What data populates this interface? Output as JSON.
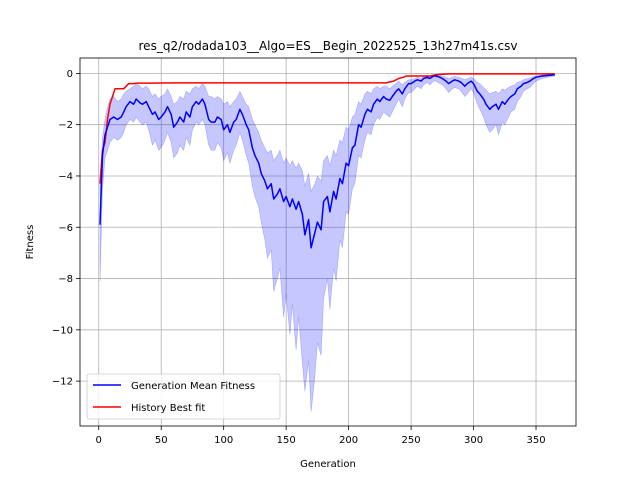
{
  "chart_data": {
    "type": "line",
    "title": "res_q2/rodada103__Algo=ES__Begin_2022525_13h27m41s.csv",
    "xlabel": "Generation",
    "ylabel": "Fitness",
    "xlim": [
      -15,
      382
    ],
    "ylim": [
      -13.75,
      0.6
    ],
    "grid": true,
    "legend_position": "lower-left",
    "xticks": [
      0,
      50,
      100,
      150,
      200,
      250,
      300,
      350
    ],
    "yticks": [
      0,
      -2,
      -4,
      -6,
      -8,
      -10,
      -12
    ],
    "series": [
      {
        "name": "Generation Mean Fitness",
        "color": "#0000ff",
        "x": [
          1,
          3,
          5,
          7,
          9,
          12,
          15,
          18,
          20,
          22,
          25,
          28,
          30,
          33,
          35,
          38,
          40,
          43,
          45,
          48,
          50,
          53,
          55,
          58,
          60,
          63,
          65,
          68,
          70,
          73,
          75,
          78,
          80,
          83,
          85,
          88,
          90,
          93,
          95,
          98,
          100,
          103,
          105,
          108,
          110,
          113,
          115,
          118,
          120,
          123,
          125,
          128,
          130,
          133,
          135,
          138,
          140,
          143,
          145,
          148,
          150,
          153,
          155,
          158,
          160,
          163,
          165,
          168,
          170,
          173,
          175,
          178,
          180,
          183,
          185,
          188,
          190,
          193,
          195,
          198,
          200,
          203,
          205,
          208,
          210,
          213,
          215,
          218,
          220,
          223,
          225,
          228,
          230,
          233,
          235,
          238,
          240,
          243,
          245,
          248,
          250,
          253,
          255,
          258,
          260,
          263,
          265,
          268,
          270,
          273,
          275,
          278,
          280,
          283,
          285,
          288,
          290,
          293,
          295,
          298,
          300,
          303,
          305,
          308,
          310,
          313,
          315,
          318,
          320,
          323,
          325,
          328,
          330,
          333,
          335,
          338,
          340,
          343,
          345,
          348,
          350,
          355,
          360,
          365
        ],
        "values": [
          -5.9,
          -3.2,
          -2.4,
          -2.1,
          -1.8,
          -1.7,
          -1.8,
          -1.7,
          -1.5,
          -1.3,
          -1.1,
          -1.2,
          -1.0,
          -1.15,
          -1.2,
          -1.1,
          -1.3,
          -1.6,
          -1.5,
          -1.8,
          -1.7,
          -1.5,
          -1.3,
          -1.6,
          -2.1,
          -1.9,
          -1.7,
          -1.9,
          -1.5,
          -1.7,
          -1.3,
          -1.1,
          -1.2,
          -1.0,
          -1.2,
          -1.8,
          -1.9,
          -1.9,
          -1.7,
          -1.8,
          -2.2,
          -2.0,
          -2.3,
          -1.9,
          -1.8,
          -1.4,
          -1.6,
          -2.0,
          -2.2,
          -2.9,
          -3.2,
          -3.5,
          -3.9,
          -4.2,
          -4.5,
          -4.3,
          -4.9,
          -4.7,
          -4.5,
          -5.0,
          -4.8,
          -5.2,
          -4.9,
          -5.3,
          -5.0,
          -5.5,
          -6.3,
          -5.7,
          -6.8,
          -6.2,
          -5.8,
          -6.1,
          -5.0,
          -4.8,
          -5.4,
          -4.6,
          -4.9,
          -4.1,
          -4.3,
          -3.5,
          -3.6,
          -2.9,
          -2.8,
          -2.0,
          -2.1,
          -1.6,
          -1.4,
          -1.5,
          -1.2,
          -1.0,
          -1.1,
          -0.9,
          -1.0,
          -1.05,
          -0.9,
          -0.7,
          -0.6,
          -0.8,
          -0.6,
          -0.4,
          -0.4,
          -0.3,
          -0.25,
          -0.3,
          -0.2,
          -0.15,
          -0.2,
          -0.1,
          -0.1,
          -0.15,
          -0.2,
          -0.3,
          -0.4,
          -0.3,
          -0.25,
          -0.3,
          -0.35,
          -0.5,
          -0.4,
          -0.3,
          -0.4,
          -0.7,
          -0.8,
          -1.0,
          -1.2,
          -1.4,
          -1.3,
          -1.2,
          -1.4,
          -1.1,
          -1.2,
          -1.0,
          -0.9,
          -0.8,
          -0.6,
          -0.5,
          -0.4,
          -0.35,
          -0.3,
          -0.2,
          -0.15,
          -0.1,
          -0.08,
          -0.05
        ]
      },
      {
        "name": "History Best fit",
        "color": "#ff0000",
        "x": [
          1,
          3,
          5,
          7,
          9,
          11,
          13,
          15,
          20,
          22,
          24,
          28,
          30,
          40,
          60,
          100,
          150,
          200,
          230,
          236,
          240,
          244,
          246,
          255,
          260,
          265,
          270,
          275,
          280,
          300,
          340,
          365
        ],
        "values": [
          -4.3,
          -3.0,
          -2.7,
          -1.8,
          -1.2,
          -0.9,
          -0.6,
          -0.6,
          -0.6,
          -0.5,
          -0.4,
          -0.4,
          -0.38,
          -0.38,
          -0.37,
          -0.37,
          -0.37,
          -0.37,
          -0.37,
          -0.3,
          -0.2,
          -0.15,
          -0.1,
          -0.1,
          -0.1,
          -0.1,
          -0.05,
          -0.03,
          -0.02,
          -0.02,
          -0.02,
          -0.02
        ]
      }
    ],
    "band": {
      "color": "#0000ff",
      "opacity": 0.22,
      "x": [
        1,
        3,
        5,
        7,
        9,
        12,
        15,
        18,
        20,
        22,
        25,
        28,
        30,
        33,
        35,
        38,
        40,
        43,
        45,
        48,
        50,
        53,
        55,
        58,
        60,
        63,
        65,
        68,
        70,
        73,
        75,
        78,
        80,
        83,
        85,
        88,
        90,
        93,
        95,
        98,
        100,
        103,
        105,
        108,
        110,
        113,
        115,
        118,
        120,
        123,
        125,
        128,
        130,
        133,
        135,
        138,
        140,
        143,
        145,
        148,
        150,
        153,
        155,
        158,
        160,
        163,
        165,
        168,
        170,
        173,
        175,
        178,
        180,
        183,
        185,
        188,
        190,
        193,
        195,
        198,
        200,
        203,
        205,
        208,
        210,
        213,
        215,
        218,
        220,
        223,
        225,
        228,
        230,
        233,
        235,
        238,
        240,
        243,
        245,
        248,
        250,
        253,
        255,
        258,
        260,
        263,
        265,
        268,
        270,
        273,
        275,
        278,
        280,
        283,
        285,
        288,
        290,
        293,
        295,
        298,
        300,
        303,
        305,
        308,
        310,
        313,
        315,
        318,
        320,
        323,
        325,
        328,
        330,
        333,
        335,
        338,
        340,
        343,
        345,
        348,
        350,
        355,
        360,
        365
      ],
      "upper": [
        -4.2,
        -2.5,
        -1.8,
        -1.3,
        -1.0,
        -0.9,
        -1.1,
        -1.0,
        -0.8,
        -0.7,
        -0.6,
        -0.5,
        -0.4,
        -0.5,
        -0.6,
        -0.5,
        -0.6,
        -0.9,
        -0.8,
        -1.0,
        -0.9,
        -0.8,
        -0.6,
        -0.9,
        -1.2,
        -1.1,
        -0.9,
        -1.0,
        -0.7,
        -0.8,
        -0.6,
        -0.5,
        -0.6,
        -0.4,
        -0.5,
        -0.9,
        -0.9,
        -1.0,
        -0.9,
        -1.0,
        -1.2,
        -1.1,
        -1.3,
        -1.1,
        -1.0,
        -0.7,
        -0.9,
        -1.2,
        -1.3,
        -1.8,
        -2.0,
        -2.3,
        -2.6,
        -2.9,
        -3.1,
        -3.0,
        -3.4,
        -3.2,
        -3.0,
        -3.5,
        -3.3,
        -3.6,
        -3.4,
        -3.7,
        -3.5,
        -3.8,
        -4.4,
        -3.9,
        -4.6,
        -4.3,
        -4.0,
        -4.2,
        -3.4,
        -3.2,
        -3.6,
        -3.0,
        -3.2,
        -2.6,
        -2.7,
        -2.1,
        -2.2,
        -1.7,
        -1.6,
        -1.1,
        -1.2,
        -0.8,
        -0.7,
        -0.8,
        -0.6,
        -0.5,
        -0.6,
        -0.5,
        -0.5,
        -0.6,
        -0.5,
        -0.4,
        -0.3,
        -0.45,
        -0.35,
        -0.25,
        -0.25,
        -0.2,
        -0.15,
        -0.2,
        -0.12,
        -0.08,
        -0.1,
        -0.05,
        -0.05,
        -0.08,
        -0.1,
        -0.15,
        -0.2,
        -0.15,
        -0.12,
        -0.15,
        -0.18,
        -0.25,
        -0.2,
        -0.15,
        -0.2,
        -0.35,
        -0.4,
        -0.55,
        -0.65,
        -0.8,
        -0.75,
        -0.7,
        -0.8,
        -0.6,
        -0.65,
        -0.55,
        -0.5,
        -0.45,
        -0.35,
        -0.3,
        -0.25,
        -0.2,
        -0.18,
        -0.12,
        -0.1,
        -0.06,
        -0.04,
        -0.02
      ],
      "lower": [
        -8.1,
        -4.5,
        -3.3,
        -3.0,
        -2.7,
        -2.5,
        -2.6,
        -2.5,
        -2.3,
        -2.0,
        -1.8,
        -1.9,
        -1.7,
        -1.9,
        -2.0,
        -1.9,
        -2.2,
        -2.8,
        -2.6,
        -3.0,
        -2.9,
        -2.6,
        -2.3,
        -2.7,
        -3.3,
        -3.1,
        -2.8,
        -3.0,
        -2.5,
        -2.8,
        -2.2,
        -1.9,
        -2.0,
        -1.8,
        -2.0,
        -2.8,
        -3.0,
        -3.0,
        -2.7,
        -2.9,
        -3.4,
        -3.1,
        -3.5,
        -3.0,
        -2.8,
        -2.3,
        -2.6,
        -3.2,
        -3.5,
        -4.4,
        -4.8,
        -5.2,
        -5.8,
        -6.5,
        -7.2,
        -6.9,
        -8.5,
        -8.0,
        -7.6,
        -9.5,
        -8.6,
        -10.2,
        -9.0,
        -10.8,
        -9.5,
        -11.3,
        -12.4,
        -11.2,
        -13.2,
        -11.8,
        -10.5,
        -11.0,
        -8.8,
        -8.0,
        -9.2,
        -7.6,
        -8.1,
        -6.5,
        -6.8,
        -5.4,
        -5.5,
        -4.5,
        -4.3,
        -3.2,
        -3.3,
        -2.6,
        -2.3,
        -2.4,
        -2.0,
        -1.7,
        -1.8,
        -1.5,
        -1.6,
        -1.7,
        -1.5,
        -1.2,
        -1.0,
        -1.3,
        -1.0,
        -0.75,
        -0.75,
        -0.6,
        -0.5,
        -0.6,
        -0.45,
        -0.35,
        -0.45,
        -0.3,
        -0.3,
        -0.4,
        -0.45,
        -0.6,
        -0.75,
        -0.6,
        -0.55,
        -0.6,
        -0.7,
        -0.9,
        -0.8,
        -0.6,
        -0.75,
        -1.2,
        -1.4,
        -1.7,
        -2.0,
        -2.3,
        -2.2,
        -2.0,
        -2.4,
        -1.9,
        -2.0,
        -1.7,
        -1.5,
        -1.4,
        -1.1,
        -0.9,
        -0.7,
        -0.6,
        -0.55,
        -0.4,
        -0.3,
        -0.2,
        -0.15,
        -0.1
      ]
    }
  }
}
